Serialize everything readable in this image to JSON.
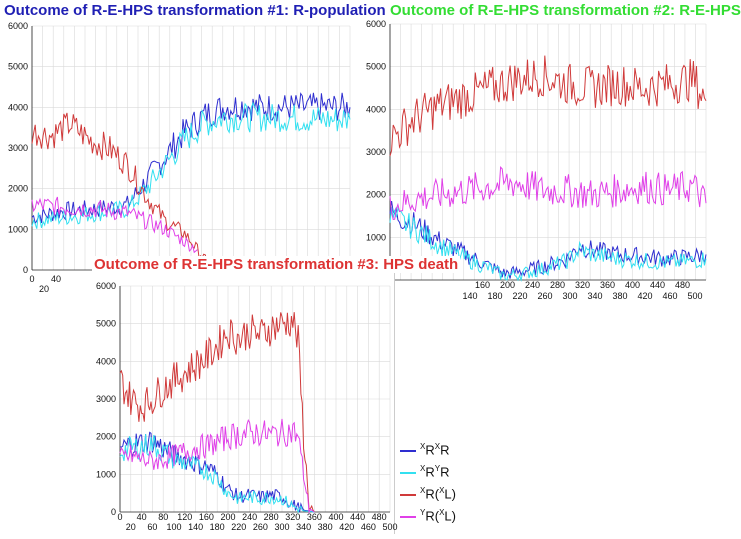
{
  "titles": {
    "t1": "Outcome of R-E-HPS transformation #1: R-population",
    "t2": "Outcome of R-E-HPS transformation #2: R-E-HPS",
    "t3": "Outcome of R-E-HPS transformation #3: HPS death"
  },
  "colors": {
    "xRxR": "#2e2ed0",
    "xRyR": "#33e0f0",
    "xRxL": "#d03a3a",
    "yRxL": "#e040e8"
  },
  "legend": [
    {
      "key": "xRxR",
      "label": "RR",
      "sup": [
        "X",
        "X"
      ]
    },
    {
      "key": "xRyR",
      "label": "RR",
      "sup": [
        "X",
        "Y"
      ]
    },
    {
      "key": "xRxL",
      "label": "R(L)",
      "sup": [
        "X",
        "X"
      ]
    },
    {
      "key": "yRxL",
      "label": "R(L)",
      "sup": [
        "Y",
        "X"
      ]
    }
  ],
  "chart_data": [
    {
      "type": "line",
      "title": "Outcome of R-E-HPS transformation #1: R-population",
      "ylim": [
        0,
        6000
      ],
      "y_ticks": [
        "0",
        "1000",
        "2000",
        "3000",
        "4000",
        "5000",
        "6000"
      ],
      "x_tick_labels": [
        "0",
        "20",
        "40"
      ],
      "series": [
        {
          "key": "xRxR",
          "points": [
            [
              0,
              1300
            ],
            [
              50,
              1450
            ],
            [
              100,
              1500
            ],
            [
              150,
              1600
            ],
            [
              180,
              2200
            ],
            [
              210,
              2800
            ],
            [
              240,
              3400
            ],
            [
              270,
              3800
            ],
            [
              300,
              4000
            ],
            [
              330,
              4050
            ],
            [
              360,
              4000
            ],
            [
              400,
              4000
            ],
            [
              460,
              4000
            ],
            [
              500,
              4000
            ]
          ]
        },
        {
          "key": "xRyR",
          "points": [
            [
              0,
              1200
            ],
            [
              50,
              1300
            ],
            [
              100,
              1400
            ],
            [
              150,
              1500
            ],
            [
              180,
              2000
            ],
            [
              210,
              2600
            ],
            [
              240,
              3200
            ],
            [
              270,
              3600
            ],
            [
              300,
              3750
            ],
            [
              340,
              3750
            ],
            [
              400,
              3750
            ],
            [
              460,
              3700
            ],
            [
              500,
              3700
            ]
          ]
        },
        {
          "key": "xRxL",
          "points": [
            [
              0,
              3400
            ],
            [
              30,
              3300
            ],
            [
              60,
              3600
            ],
            [
              90,
              3200
            ],
            [
              120,
              3000
            ],
            [
              150,
              2600
            ],
            [
              180,
              1800
            ],
            [
              210,
              1200
            ],
            [
              240,
              900
            ],
            [
              260,
              500
            ],
            [
              275,
              200
            ]
          ]
        },
        {
          "key": "yRxL",
          "points": [
            [
              0,
              1600
            ],
            [
              50,
              1550
            ],
            [
              100,
              1500
            ],
            [
              150,
              1400
            ],
            [
              180,
              1200
            ],
            [
              210,
              1000
            ],
            [
              240,
              700
            ],
            [
              260,
              500
            ]
          ]
        }
      ]
    },
    {
      "type": "line",
      "title": "Outcome of R-E-HPS transformation #2: R-E-HPS",
      "ylim": [
        0,
        6000
      ],
      "y_ticks": [
        "1000",
        "2000",
        "3000",
        "4000",
        "5000",
        "6000"
      ],
      "x_tick_labels": [
        "140",
        "160",
        "180",
        "200",
        "220",
        "240",
        "260",
        "280",
        "300",
        "320",
        "340",
        "360",
        "380",
        "400",
        "420",
        "440",
        "460",
        "480",
        "500"
      ],
      "series": [
        {
          "key": "xRxR",
          "points": [
            [
              0,
              1600
            ],
            [
              40,
              1300
            ],
            [
              80,
              900
            ],
            [
              120,
              600
            ],
            [
              160,
              300
            ],
            [
              180,
              150
            ],
            [
              200,
              180
            ],
            [
              240,
              300
            ],
            [
              280,
              500
            ],
            [
              300,
              800
            ],
            [
              320,
              700
            ],
            [
              360,
              600
            ],
            [
              400,
              550
            ],
            [
              440,
              500
            ],
            [
              480,
              550
            ],
            [
              500,
              600
            ]
          ]
        },
        {
          "key": "xRyR",
          "points": [
            [
              0,
              1500
            ],
            [
              40,
              1200
            ],
            [
              80,
              800
            ],
            [
              120,
              500
            ],
            [
              160,
              250
            ],
            [
              180,
              100
            ],
            [
              200,
              120
            ],
            [
              240,
              250
            ],
            [
              280,
              450
            ],
            [
              300,
              700
            ],
            [
              320,
              600
            ],
            [
              360,
              500
            ],
            [
              400,
              450
            ],
            [
              440,
              400
            ],
            [
              480,
              450
            ],
            [
              500,
              500
            ]
          ]
        },
        {
          "key": "xRxL",
          "points": [
            [
              0,
              3300
            ],
            [
              40,
              3800
            ],
            [
              80,
              4100
            ],
            [
              120,
              4300
            ],
            [
              160,
              4500
            ],
            [
              200,
              4700
            ],
            [
              240,
              4800
            ],
            [
              280,
              4600
            ],
            [
              320,
              4500
            ],
            [
              360,
              4600
            ],
            [
              400,
              4500
            ],
            [
              440,
              4600
            ],
            [
              480,
              4700
            ],
            [
              500,
              4200
            ]
          ]
        },
        {
          "key": "yRxL",
          "points": [
            [
              0,
              1700
            ],
            [
              40,
              1900
            ],
            [
              80,
              2000
            ],
            [
              120,
              2100
            ],
            [
              160,
              2200
            ],
            [
              200,
              2300
            ],
            [
              240,
              2100
            ],
            [
              280,
              2100
            ],
            [
              320,
              2000
            ],
            [
              360,
              2100
            ],
            [
              400,
              2200
            ],
            [
              440,
              2100
            ],
            [
              480,
              2200
            ],
            [
              500,
              1800
            ]
          ]
        }
      ]
    },
    {
      "type": "line",
      "title": "Outcome of R-E-HPS transformation #3: HPS death",
      "ylim": [
        0,
        6000
      ],
      "xlim": [
        0,
        500
      ],
      "y_ticks": [
        "0",
        "1000",
        "2000",
        "3000",
        "4000",
        "5000",
        "6000"
      ],
      "x_ticks_top": [
        "0",
        "20",
        "40",
        "60",
        "80",
        "100",
        "120",
        "140",
        "160",
        "180",
        "200",
        "220",
        "240",
        "260",
        "280",
        "300",
        "320",
        "340",
        "360",
        "380",
        "400",
        "420",
        "440",
        "460",
        "480",
        "500"
      ],
      "series": [
        {
          "key": "xRxR",
          "points": [
            [
              0,
              1700
            ],
            [
              20,
              1800
            ],
            [
              40,
              1850
            ],
            [
              60,
              1900
            ],
            [
              80,
              1700
            ],
            [
              100,
              1500
            ],
            [
              120,
              1400
            ],
            [
              140,
              1300
            ],
            [
              160,
              1200
            ],
            [
              180,
              1000
            ],
            [
              200,
              600
            ],
            [
              220,
              400
            ],
            [
              240,
              450
            ],
            [
              260,
              400
            ],
            [
              280,
              450
            ],
            [
              300,
              400
            ],
            [
              320,
              200
            ],
            [
              340,
              50
            ],
            [
              360,
              0
            ]
          ]
        },
        {
          "key": "xRyR",
          "points": [
            [
              0,
              1600
            ],
            [
              20,
              1700
            ],
            [
              40,
              1750
            ],
            [
              60,
              1800
            ],
            [
              80,
              1600
            ],
            [
              100,
              1400
            ],
            [
              120,
              1300
            ],
            [
              140,
              1200
            ],
            [
              160,
              1100
            ],
            [
              180,
              900
            ],
            [
              200,
              500
            ],
            [
              220,
              350
            ],
            [
              240,
              400
            ],
            [
              260,
              350
            ],
            [
              280,
              400
            ],
            [
              300,
              350
            ],
            [
              320,
              150
            ],
            [
              340,
              30
            ],
            [
              360,
              0
            ]
          ]
        },
        {
          "key": "xRxL",
          "points": [
            [
              0,
              3500
            ],
            [
              20,
              3000
            ],
            [
              40,
              2800
            ],
            [
              60,
              3000
            ],
            [
              80,
              3300
            ],
            [
              100,
              3500
            ],
            [
              120,
              3700
            ],
            [
              140,
              3900
            ],
            [
              160,
              4100
            ],
            [
              180,
              4400
            ],
            [
              200,
              4800
            ],
            [
              220,
              4600
            ],
            [
              240,
              4800
            ],
            [
              260,
              4700
            ],
            [
              280,
              4900
            ],
            [
              300,
              5000
            ],
            [
              320,
              5100
            ],
            [
              330,
              4500
            ],
            [
              340,
              2000
            ],
            [
              350,
              200
            ],
            [
              360,
              0
            ]
          ]
        },
        {
          "key": "yRxL",
          "points": [
            [
              0,
              1400
            ],
            [
              20,
              1500
            ],
            [
              40,
              1400
            ],
            [
              60,
              1350
            ],
            [
              80,
              1400
            ],
            [
              100,
              1500
            ],
            [
              120,
              1600
            ],
            [
              140,
              1700
            ],
            [
              160,
              1750
            ],
            [
              180,
              1850
            ],
            [
              200,
              2000
            ],
            [
              220,
              2050
            ],
            [
              240,
              2100
            ],
            [
              260,
              2100
            ],
            [
              280,
              2050
            ],
            [
              300,
              2100
            ],
            [
              320,
              2150
            ],
            [
              330,
              2000
            ],
            [
              340,
              1000
            ],
            [
              350,
              100
            ],
            [
              360,
              0
            ]
          ]
        }
      ]
    }
  ]
}
